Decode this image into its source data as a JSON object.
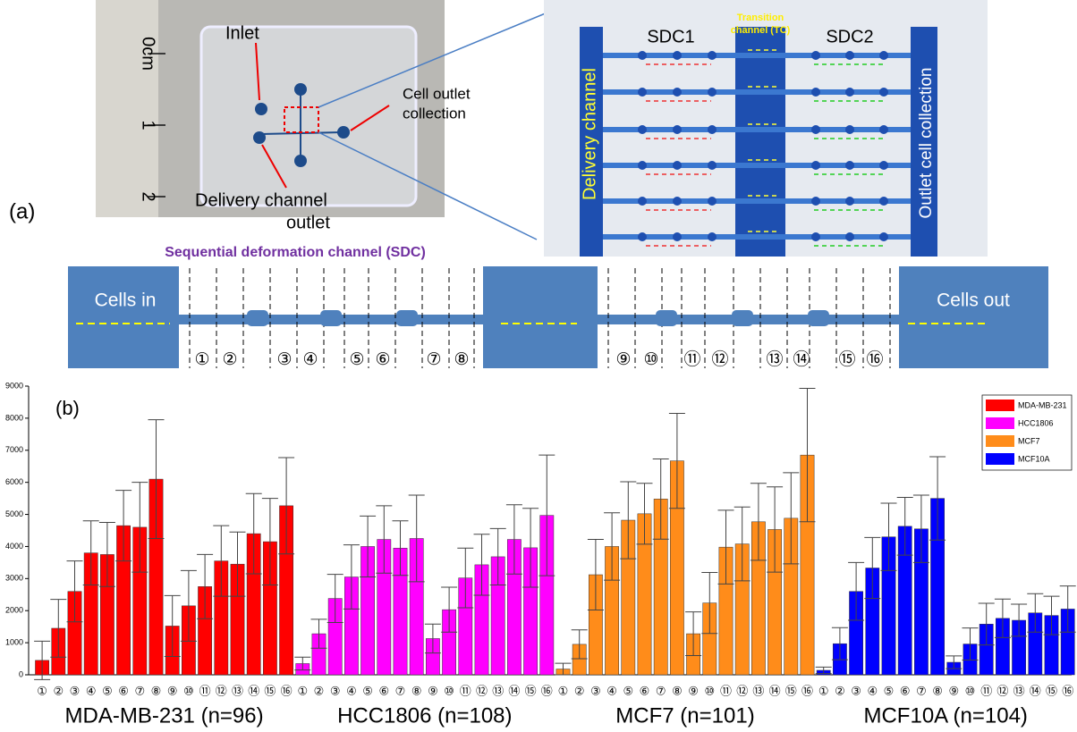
{
  "panel_a": {
    "label": "(a)",
    "photo": {
      "ruler_marks": [
        "0cm",
        "1",
        "2"
      ],
      "inlet": "Inlet",
      "cell_outlet": [
        "Cell outlet",
        "collection"
      ],
      "delivery_outlet": [
        "Delivery channel",
        "outlet"
      ]
    },
    "micrograph": {
      "sdc1": "SDC1",
      "sdc2": "SDC2",
      "transition": [
        "Transition",
        "channel (TC)"
      ],
      "delivery": "Delivery channel",
      "outlet": "Outlet cell collection"
    },
    "schematic": {
      "title": "Sequential deformation channel (SDC)",
      "cells_in": "Cells in",
      "cells_out": "Cells out",
      "segments": [
        "①",
        "②",
        "③",
        "④",
        "⑤",
        "⑥",
        "⑦",
        "⑧",
        "⑨",
        "⑩",
        "⑪",
        "⑫",
        "⑬",
        "⑭",
        "⑮",
        "⑯"
      ]
    }
  },
  "chart_data": {
    "type": "bar",
    "panel_label": "(b)",
    "categories": [
      "①",
      "②",
      "③",
      "④",
      "⑤",
      "⑥",
      "⑦",
      "⑧",
      "⑨",
      "⑩",
      "⑪",
      "⑫",
      "⑬",
      "⑭",
      "⑮",
      "⑯"
    ],
    "group_labels": [
      "MDA-MB-231 (n=96)",
      "HCC1806 (n=108)",
      "MCF7 (n=101)",
      "MCF10A (n=104)"
    ],
    "series": [
      {
        "name": "MDA-MB-231",
        "color": "#ff0000",
        "values": [
          450,
          1450,
          2600,
          3800,
          3750,
          4650,
          4600,
          6100,
          1520,
          2150,
          2750,
          3550,
          3450,
          4400,
          4150,
          5270
        ],
        "errors": [
          600,
          900,
          950,
          1000,
          1000,
          1100,
          1400,
          1850,
          950,
          1100,
          1000,
          1100,
          1000,
          1250,
          1350,
          1500
        ]
      },
      {
        "name": "HCC1806",
        "color": "#ff00ff",
        "values": [
          350,
          1280,
          2380,
          3050,
          4000,
          4220,
          3950,
          4250,
          1130,
          2030,
          3020,
          3430,
          3680,
          4220,
          3960,
          4970
        ],
        "errors": [
          200,
          450,
          750,
          1000,
          950,
          1050,
          850,
          1350,
          450,
          700,
          930,
          950,
          880,
          1080,
          1230,
          1880
        ]
      },
      {
        "name": "MCF7",
        "color": "#ff8c1a",
        "values": [
          180,
          950,
          3120,
          4000,
          4820,
          5020,
          5480,
          6670,
          1280,
          2240,
          3980,
          4080,
          4770,
          4530,
          4880,
          6850
        ],
        "errors": [
          180,
          450,
          1100,
          1050,
          1200,
          950,
          1250,
          1480,
          680,
          950,
          1150,
          1150,
          1200,
          1330,
          1420,
          2080
        ]
      },
      {
        "name": "MCF10A",
        "color": "#0000ff",
        "values": [
          140,
          970,
          2600,
          3330,
          4300,
          4630,
          4550,
          5500,
          390,
          960,
          1580,
          1760,
          1700,
          1930,
          1850,
          2050
        ],
        "errors": [
          100,
          500,
          900,
          950,
          1050,
          900,
          1050,
          1300,
          200,
          500,
          650,
          600,
          500,
          600,
          600,
          720
        ]
      }
    ],
    "ylim": [
      0,
      9000
    ],
    "yticks": [
      0,
      1000,
      2000,
      3000,
      4000,
      5000,
      6000,
      7000,
      8000,
      9000
    ],
    "legend": "top-right"
  }
}
